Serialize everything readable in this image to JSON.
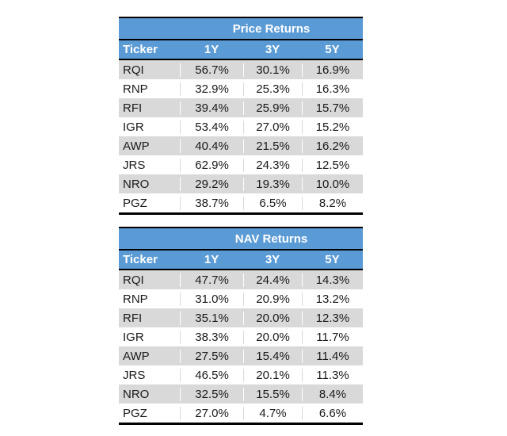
{
  "colors": {
    "header_blue": "#5B9BD5",
    "stripe_gray": "#D9D9D9",
    "frame_black": "#000000",
    "header_text": "#FFFFFF",
    "body_text": "#1A1A1A",
    "background": "#FFFFFF"
  },
  "chart_data": [
    {
      "type": "table",
      "title": "Price Returns",
      "columns": [
        "Ticker",
        "1Y",
        "3Y",
        "5Y"
      ],
      "rows": [
        [
          "RQI",
          "56.7%",
          "30.1%",
          "16.9%"
        ],
        [
          "RNP",
          "32.9%",
          "25.3%",
          "16.3%"
        ],
        [
          "RFI",
          "39.4%",
          "25.9%",
          "15.7%"
        ],
        [
          "IGR",
          "53.4%",
          "27.0%",
          "15.2%"
        ],
        [
          "AWP",
          "40.4%",
          "21.5%",
          "16.2%"
        ],
        [
          "JRS",
          "62.9%",
          "24.3%",
          "12.5%"
        ],
        [
          "NRO",
          "29.2%",
          "19.3%",
          "10.0%"
        ],
        [
          "PGZ",
          "38.7%",
          "6.5%",
          "8.2%"
        ]
      ]
    },
    {
      "type": "table",
      "title": "NAV Returns",
      "columns": [
        "Ticker",
        "1Y",
        "3Y",
        "5Y"
      ],
      "rows": [
        [
          "RQI",
          "47.7%",
          "24.4%",
          "14.3%"
        ],
        [
          "RNP",
          "31.0%",
          "20.9%",
          "13.2%"
        ],
        [
          "RFI",
          "35.1%",
          "20.0%",
          "12.3%"
        ],
        [
          "IGR",
          "38.3%",
          "20.0%",
          "11.7%"
        ],
        [
          "AWP",
          "27.5%",
          "15.4%",
          "11.4%"
        ],
        [
          "JRS",
          "46.5%",
          "20.1%",
          "11.3%"
        ],
        [
          "NRO",
          "32.5%",
          "15.5%",
          "8.4%"
        ],
        [
          "PGZ",
          "27.0%",
          "4.7%",
          "6.6%"
        ]
      ]
    }
  ]
}
